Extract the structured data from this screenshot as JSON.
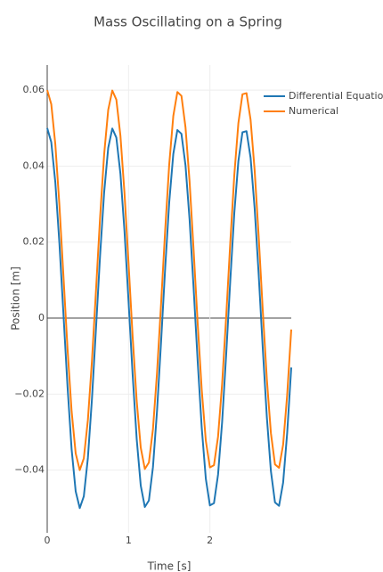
{
  "chart_data": {
    "type": "line",
    "title": "Mass Oscillating on a Spring",
    "xlabel": "Time [s]",
    "ylabel": "Position [m]",
    "x": [
      0,
      0.05,
      0.1,
      0.15,
      0.2,
      0.25,
      0.3,
      0.35,
      0.4,
      0.45,
      0.5,
      0.55,
      0.6,
      0.65,
      0.7,
      0.75,
      0.8,
      0.85,
      0.9,
      0.95,
      1,
      1.05,
      1.1,
      1.15,
      1.2,
      1.25,
      1.3,
      1.35,
      1.4,
      1.45,
      1.5,
      1.55,
      1.6,
      1.65,
      1.7,
      1.75,
      1.8,
      1.85,
      1.9,
      1.95,
      2,
      2.05,
      2.1,
      2.15,
      2.2,
      2.25,
      2.3,
      2.35,
      2.4,
      2.45,
      2.5,
      2.55,
      2.6,
      2.65,
      2.7,
      2.75,
      2.8,
      2.85,
      2.9,
      2.95,
      3
    ],
    "series": [
      {
        "name": "Differential Equation",
        "color": "#1f77b4",
        "values": [
          0.05,
          0.0463,
          0.0357,
          0.0197,
          0.0009,
          -0.0181,
          -0.0345,
          -0.0456,
          -0.05,
          -0.0469,
          -0.0368,
          -0.0213,
          -0.0026,
          0.0165,
          0.0331,
          0.0448,
          0.0499,
          0.0475,
          0.038,
          0.0229,
          0.0044,
          -0.0148,
          -0.0318,
          -0.0441,
          -0.0497,
          -0.048,
          -0.0392,
          -0.0244,
          -0.0061,
          0.0131,
          0.0305,
          0.0432,
          0.0495,
          0.0485,
          0.0402,
          0.026,
          0.0078,
          -0.0115,
          -0.029,
          -0.0423,
          -0.0493,
          -0.0487,
          -0.0412,
          -0.0274,
          -0.0096,
          0.0097,
          0.0277,
          0.0413,
          0.0489,
          0.0492,
          0.0422,
          0.0289,
          0.0113,
          -0.008,
          -0.0261,
          -0.0403,
          -0.0485,
          -0.0494,
          -0.0433,
          -0.0302,
          -0.013
        ]
      },
      {
        "name": "Numerical",
        "color": "#ff7f0e",
        "values": [
          0.06,
          0.0563,
          0.0457,
          0.0297,
          0.0109,
          -0.0081,
          -0.0245,
          -0.0356,
          -0.04,
          -0.0369,
          -0.0268,
          -0.0113,
          0.0074,
          0.0265,
          0.0431,
          0.0548,
          0.0599,
          0.0575,
          0.048,
          0.0329,
          0.0144,
          -0.0048,
          -0.0218,
          -0.0341,
          -0.0397,
          -0.038,
          -0.0292,
          -0.0144,
          0.0039,
          0.0231,
          0.0405,
          0.0532,
          0.0595,
          0.0585,
          0.0502,
          0.036,
          0.0178,
          -0.0015,
          -0.019,
          -0.0323,
          -0.0393,
          -0.0387,
          -0.0312,
          -0.0174,
          0.0004,
          0.0197,
          0.0377,
          0.0513,
          0.0589,
          0.0592,
          0.0522,
          0.0389,
          0.0213,
          0.002,
          -0.0161,
          -0.0303,
          -0.0385,
          -0.0394,
          -0.0333,
          -0.0202,
          -0.003
        ]
      }
    ],
    "xlim": [
      0,
      3
    ],
    "ylim": [
      -0.0565,
      0.0666
    ],
    "xticks": [
      0,
      1,
      2
    ],
    "yticks": [
      {
        "value": -0.04,
        "label": "−0.04"
      },
      {
        "value": -0.02,
        "label": "−0.02"
      },
      0,
      0.02,
      0.04,
      0.06
    ],
    "grid": true,
    "legend": "top-right"
  }
}
